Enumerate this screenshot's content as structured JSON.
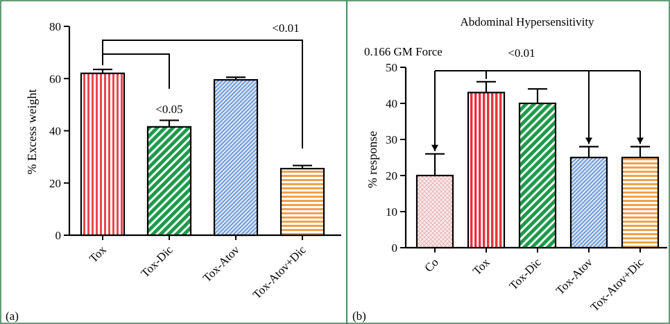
{
  "panels": [
    {
      "tag": "(a)",
      "chart_data": {
        "type": "bar",
        "title": "",
        "subtitle": "",
        "xlabel": "",
        "ylabel": "% Excess weight",
        "ylim": [
          0,
          80
        ],
        "yticks": [
          0,
          20,
          40,
          60,
          80
        ],
        "grid": false,
        "categories": [
          "Tox",
          "Tox-Dic",
          "Tox-Atov",
          "Tox-Atov+Dic"
        ],
        "values": [
          62,
          41.5,
          59.5,
          25.5
        ],
        "errors": [
          1.5,
          2.5,
          1.0,
          1.2
        ],
        "colors": [
          "#e8474f",
          "#1e9a4a",
          "#6f9ad6",
          "#f2a04a"
        ],
        "fill_styles": [
          "vertical-stripes",
          "diagonal-stripes",
          "fine-diagonal-hatch",
          "horizontal-stripes"
        ],
        "annotations": [
          {
            "text": "<0.05",
            "from": "Tox",
            "to": "Tox-Dic"
          },
          {
            "text": "<0.01",
            "from": "Tox",
            "to": "Tox-Atov+Dic"
          }
        ]
      }
    },
    {
      "tag": "(b)",
      "chart_data": {
        "type": "bar",
        "title": "Abdominal Hypersensitivity",
        "subtitle": "0.166 GM Force",
        "xlabel": "",
        "ylabel": "% response",
        "ylim": [
          0,
          50
        ],
        "yticks": [
          0,
          10,
          20,
          30,
          40,
          50
        ],
        "grid": false,
        "categories": [
          "Co",
          "Tox",
          "Tox-Dic",
          "Tox-Atov",
          "Tox-Atov+Dic"
        ],
        "values": [
          20,
          43,
          40,
          25,
          25
        ],
        "errors": [
          6,
          3,
          4,
          3,
          3
        ],
        "colors": [
          "#efc9c9",
          "#e8323c",
          "#1e9a4a",
          "#6f9ad6",
          "#f2a04a"
        ],
        "fill_styles": [
          "crosshatch",
          "vertical-stripes",
          "diagonal-stripes",
          "fine-diagonal-hatch",
          "horizontal-stripes"
        ],
        "annotations": [
          {
            "text": "<0.01",
            "from": "Tox",
            "to": [
              "Co",
              "Tox-Atov",
              "Tox-Atov+Dic"
            ]
          }
        ]
      }
    }
  ]
}
